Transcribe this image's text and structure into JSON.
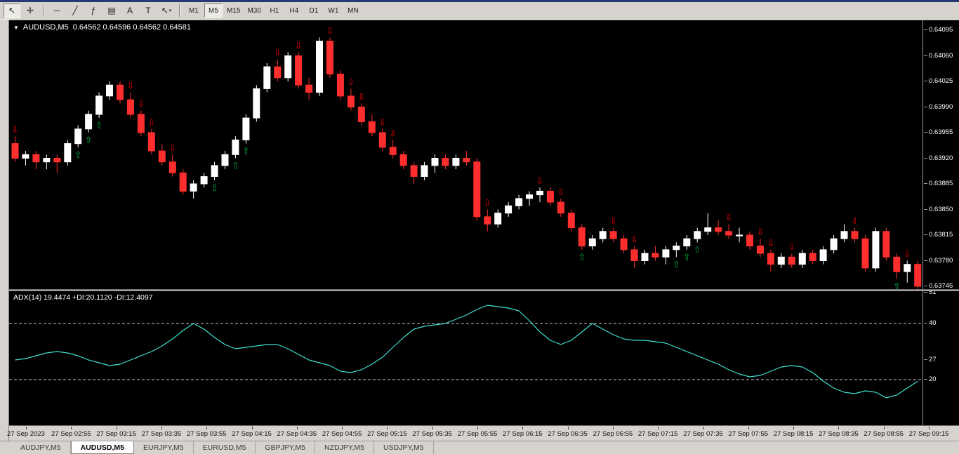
{
  "toolbar": {
    "tools": [
      {
        "name": "cursor",
        "glyph": "↖",
        "pressed": true
      },
      {
        "name": "crosshair",
        "glyph": "✛"
      },
      {
        "sep": true
      },
      {
        "name": "horizontal-line",
        "glyph": "─"
      },
      {
        "name": "trendline",
        "glyph": "╱"
      },
      {
        "name": "fibonacci",
        "glyph": "ƒ"
      },
      {
        "name": "channel",
        "glyph": "▤"
      },
      {
        "name": "text",
        "glyph": "A"
      },
      {
        "name": "text-label",
        "glyph": "T"
      },
      {
        "name": "arrows",
        "glyph": "↖",
        "dropdown": true
      },
      {
        "sep": true
      }
    ],
    "timeframes": [
      {
        "label": "M1"
      },
      {
        "label": "M5",
        "active": true
      },
      {
        "label": "M15"
      },
      {
        "label": "M30"
      },
      {
        "label": "H1"
      },
      {
        "label": "H4"
      },
      {
        "label": "D1"
      },
      {
        "label": "W1"
      },
      {
        "label": "MN"
      }
    ]
  },
  "chart_header": {
    "dropdown_glyph": "▼",
    "symbol": "AUDUSD,M5",
    "ohlc": "0.64562 0.64596 0.64562 0.64581"
  },
  "indicator_header": {
    "label": "ADX(14) 19.4474 +DI:20.1120 -DI:12.4097"
  },
  "price_axis": [
    "0.64095",
    "0.64060",
    "0.64025",
    "0.63990",
    "0.63955",
    "0.63920",
    "0.63885",
    "0.63850",
    "0.63815",
    "0.63780",
    "0.63745"
  ],
  "time_axis": [
    "27 Sep 2023",
    "27 Sep 02:55",
    "27 Sep 03:15",
    "27 Sep 03:35",
    "27 Sep 03:55",
    "27 Sep 04:15",
    "27 Sep 04:35",
    "27 Sep 04:55",
    "27 Sep 05:15",
    "27 Sep 05:35",
    "27 Sep 05:55",
    "27 Sep 06:15",
    "27 Sep 06:35",
    "27 Sep 06:55",
    "27 Sep 07:15",
    "27 Sep 07:35",
    "27 Sep 07:55",
    "27 Sep 08:15",
    "27 Sep 08:35",
    "27 Sep 08:55",
    "27 Sep 09:15"
  ],
  "tabs": [
    {
      "label": "AUDJPY,M5"
    },
    {
      "label": "AUDUSD,M5",
      "active": true
    },
    {
      "label": "EURJPY,M5"
    },
    {
      "label": "EURUSD,M5"
    },
    {
      "label": "GBPJPY,M5"
    },
    {
      "label": "NZDJPY,M5"
    },
    {
      "label": "USDJPY,M5"
    }
  ],
  "colors": {
    "chart_bg": "#000000",
    "bull": "#ffffff",
    "bear": "#ff2e2e",
    "signal_down": "#e60000",
    "signal_up": "#00a33c",
    "adx_line": "#40e0d0",
    "level_line": "#c8c8c8",
    "axis_text": "#ffffff"
  },
  "chart_data": [
    {
      "type": "candlestick",
      "symbol": "AUDUSD",
      "timeframe": "M5",
      "y_range": [
        0.63745,
        0.64095
      ],
      "candles": [
        [
          0.6394,
          0.6395,
          0.63915,
          0.6392
        ],
        [
          0.6392,
          0.6393,
          0.6391,
          0.63925
        ],
        [
          0.63925,
          0.6393,
          0.63905,
          0.63915
        ],
        [
          0.63915,
          0.63925,
          0.63905,
          0.6392
        ],
        [
          0.6392,
          0.63925,
          0.639,
          0.63915
        ],
        [
          0.63915,
          0.63945,
          0.6391,
          0.6394
        ],
        [
          0.6394,
          0.63965,
          0.63935,
          0.6396
        ],
        [
          0.6396,
          0.63985,
          0.63955,
          0.6398
        ],
        [
          0.6398,
          0.6401,
          0.63975,
          0.64005
        ],
        [
          0.64005,
          0.64025,
          0.64,
          0.6402
        ],
        [
          0.6402,
          0.64025,
          0.63995,
          0.64
        ],
        [
          0.64,
          0.6401,
          0.63975,
          0.6398
        ],
        [
          0.6398,
          0.63985,
          0.6395,
          0.63955
        ],
        [
          0.63955,
          0.6396,
          0.63925,
          0.6393
        ],
        [
          0.6393,
          0.6394,
          0.6391,
          0.63915
        ],
        [
          0.63915,
          0.63925,
          0.63895,
          0.639
        ],
        [
          0.639,
          0.63905,
          0.6387,
          0.63875
        ],
        [
          0.63875,
          0.6389,
          0.63865,
          0.63885
        ],
        [
          0.63885,
          0.639,
          0.6388,
          0.63895
        ],
        [
          0.63895,
          0.63915,
          0.6389,
          0.6391
        ],
        [
          0.6391,
          0.6393,
          0.63905,
          0.63925
        ],
        [
          0.63925,
          0.6395,
          0.6392,
          0.63945
        ],
        [
          0.63945,
          0.6398,
          0.6394,
          0.63975
        ],
        [
          0.63975,
          0.6402,
          0.6397,
          0.64015
        ],
        [
          0.64015,
          0.6405,
          0.6401,
          0.64045
        ],
        [
          0.64045,
          0.64055,
          0.64025,
          0.6403
        ],
        [
          0.6403,
          0.64065,
          0.64025,
          0.6406
        ],
        [
          0.6406,
          0.64065,
          0.64015,
          0.6402
        ],
        [
          0.6402,
          0.6403,
          0.64,
          0.6401
        ],
        [
          0.6401,
          0.64085,
          0.64005,
          0.6408
        ],
        [
          0.6408,
          0.64085,
          0.6403,
          0.64035
        ],
        [
          0.64035,
          0.6404,
          0.64,
          0.64005
        ],
        [
          0.64005,
          0.64015,
          0.63985,
          0.6399
        ],
        [
          0.6399,
          0.63995,
          0.63965,
          0.6397
        ],
        [
          0.6397,
          0.6398,
          0.6395,
          0.63955
        ],
        [
          0.63955,
          0.6396,
          0.6393,
          0.63935
        ],
        [
          0.63935,
          0.63945,
          0.6392,
          0.63925
        ],
        [
          0.63925,
          0.6393,
          0.63905,
          0.6391
        ],
        [
          0.6391,
          0.63915,
          0.63885,
          0.63895
        ],
        [
          0.63895,
          0.63915,
          0.6389,
          0.6391
        ],
        [
          0.6391,
          0.63925,
          0.639,
          0.6392
        ],
        [
          0.6392,
          0.63925,
          0.63905,
          0.6391
        ],
        [
          0.6391,
          0.63925,
          0.63905,
          0.6392
        ],
        [
          0.6392,
          0.6393,
          0.6391,
          0.63915
        ],
        [
          0.63915,
          0.6392,
          0.63835,
          0.6384
        ],
        [
          0.6384,
          0.6385,
          0.6382,
          0.6383
        ],
        [
          0.6383,
          0.6385,
          0.63825,
          0.63845
        ],
        [
          0.63845,
          0.6386,
          0.6384,
          0.63855
        ],
        [
          0.63855,
          0.6387,
          0.6385,
          0.63865
        ],
        [
          0.63865,
          0.63875,
          0.63855,
          0.6387
        ],
        [
          0.6387,
          0.6388,
          0.6386,
          0.63875
        ],
        [
          0.63875,
          0.6388,
          0.63855,
          0.6386
        ],
        [
          0.6386,
          0.63865,
          0.6384,
          0.63845
        ],
        [
          0.63845,
          0.6385,
          0.6382,
          0.63825
        ],
        [
          0.63825,
          0.6383,
          0.63795,
          0.638
        ],
        [
          0.638,
          0.63815,
          0.63795,
          0.6381
        ],
        [
          0.6381,
          0.63825,
          0.63805,
          0.6382
        ],
        [
          0.6382,
          0.63825,
          0.63805,
          0.6381
        ],
        [
          0.6381,
          0.63815,
          0.6379,
          0.63795
        ],
        [
          0.63795,
          0.638,
          0.6377,
          0.6378
        ],
        [
          0.6378,
          0.63795,
          0.63775,
          0.6379
        ],
        [
          0.6379,
          0.638,
          0.6378,
          0.63785
        ],
        [
          0.63785,
          0.638,
          0.63775,
          0.63795
        ],
        [
          0.63795,
          0.63805,
          0.63785,
          0.638
        ],
        [
          0.638,
          0.63815,
          0.63795,
          0.6381
        ],
        [
          0.6381,
          0.63825,
          0.63805,
          0.6382
        ],
        [
          0.6382,
          0.63845,
          0.63815,
          0.63825
        ],
        [
          0.63825,
          0.63835,
          0.63815,
          0.6382
        ],
        [
          0.6382,
          0.6383,
          0.6381,
          0.63815
        ],
        [
          0.63815,
          0.63825,
          0.63805,
          0.63815
        ],
        [
          0.63815,
          0.6382,
          0.63795,
          0.638
        ],
        [
          0.638,
          0.6381,
          0.63785,
          0.6379
        ],
        [
          0.6379,
          0.63795,
          0.63765,
          0.63775
        ],
        [
          0.63775,
          0.6379,
          0.6377,
          0.63785
        ],
        [
          0.63785,
          0.6379,
          0.6377,
          0.63775
        ],
        [
          0.63775,
          0.63795,
          0.6377,
          0.6379
        ],
        [
          0.6379,
          0.63795,
          0.63775,
          0.6378
        ],
        [
          0.6378,
          0.638,
          0.63775,
          0.63795
        ],
        [
          0.63795,
          0.63815,
          0.6379,
          0.6381
        ],
        [
          0.6381,
          0.6383,
          0.63805,
          0.6382
        ],
        [
          0.6382,
          0.63825,
          0.63805,
          0.6381
        ],
        [
          0.6381,
          0.63815,
          0.63765,
          0.6377
        ],
        [
          0.6377,
          0.63825,
          0.63765,
          0.6382
        ],
        [
          0.6382,
          0.63825,
          0.6378,
          0.63785
        ],
        [
          0.63785,
          0.6379,
          0.63755,
          0.63765
        ],
        [
          0.63765,
          0.6378,
          0.6375,
          0.63775
        ],
        [
          0.63775,
          0.6378,
          0.63735,
          0.63745
        ]
      ],
      "signals": {
        "down_glyph": "⇩",
        "up_glyph": "⇧",
        "down": [
          0,
          11,
          12,
          13,
          15,
          25,
          27,
          30,
          32,
          33,
          35,
          36,
          45,
          50,
          52,
          57,
          59,
          68,
          71,
          72,
          74,
          80,
          85
        ],
        "up": [
          6,
          7,
          8,
          19,
          21,
          22,
          54,
          63,
          64,
          65,
          84
        ]
      }
    },
    {
      "type": "line",
      "name": "ADX(14)",
      "last_value": 19.4474,
      "plus_di": 20.112,
      "minus_di": 12.4097,
      "levels": [
        40,
        20
      ],
      "y_ticks": [
        51,
        40,
        27,
        20
      ],
      "values": [
        27,
        27.5,
        28.5,
        29.5,
        30,
        29.5,
        28.5,
        27,
        26,
        25,
        25.5,
        27,
        28.5,
        30,
        32,
        34.5,
        37.5,
        40,
        38,
        35,
        32.5,
        31,
        31.5,
        32,
        32.5,
        32.5,
        31,
        29,
        27,
        26,
        25,
        23,
        22.5,
        23.5,
        25.5,
        28,
        31.5,
        35,
        38,
        39,
        39.5,
        40,
        41.5,
        43,
        45,
        46.5,
        46,
        45.5,
        44.5,
        41,
        37,
        34,
        32.5,
        34,
        37,
        40,
        38,
        36,
        34.5,
        34,
        34,
        33.5,
        33,
        31.5,
        30,
        28.5,
        27,
        25.5,
        23.5,
        22,
        21,
        21.5,
        23,
        24.5,
        25,
        24.5,
        22.5,
        19.5,
        17,
        15.5,
        15,
        16,
        15.5,
        13.5,
        14.5,
        17,
        19.4
      ]
    }
  ]
}
